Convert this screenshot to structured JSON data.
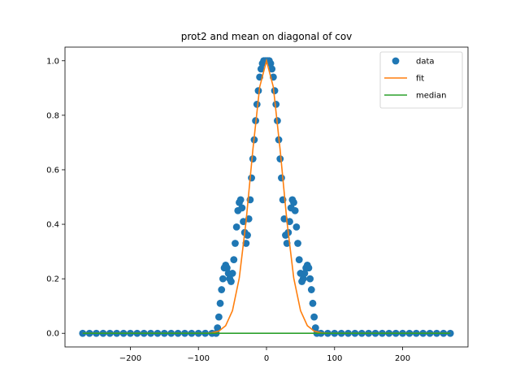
{
  "chart_data": {
    "type": "scatter",
    "title": "prot2 and mean on diagonal of cov",
    "xlabel": "",
    "ylabel": "",
    "xlim": [
      -296,
      296
    ],
    "ylim": [
      -0.05,
      1.05
    ],
    "xticks": [
      -200,
      -100,
      0,
      100,
      200
    ],
    "xtick_labels": [
      "−200",
      "−100",
      "0",
      "100",
      "200"
    ],
    "yticks": [
      0.0,
      0.2,
      0.4,
      0.6,
      0.8,
      1.0
    ],
    "ytick_labels": [
      "0.0",
      "0.2",
      "0.4",
      "0.6",
      "0.8",
      "1.0"
    ],
    "grid": false,
    "legend_position": "top-right",
    "series": [
      {
        "name": "data",
        "kind": "scatter",
        "color": "#1f77b4",
        "x": [
          -270,
          -260,
          -250,
          -240,
          -230,
          -220,
          -210,
          -200,
          -190,
          -180,
          -170,
          -160,
          -150,
          -140,
          -130,
          -120,
          -110,
          -100,
          -90,
          -80,
          -74,
          -72,
          -70,
          -68,
          -66,
          -64,
          -62,
          -60,
          -58,
          -56,
          -54,
          -52,
          -50,
          -48,
          -46,
          -44,
          -42,
          -40,
          -38,
          -36,
          -34,
          -32,
          -30,
          -28,
          -26,
          -24,
          -22,
          -20,
          -18,
          -16,
          -14,
          -12,
          -10,
          -8,
          -6,
          -4,
          -2,
          0,
          2,
          4,
          6,
          8,
          10,
          12,
          14,
          16,
          18,
          20,
          22,
          24,
          26,
          28,
          30,
          32,
          34,
          36,
          38,
          40,
          42,
          44,
          46,
          48,
          50,
          52,
          54,
          56,
          58,
          60,
          62,
          64,
          66,
          68,
          70,
          72,
          74,
          80,
          90,
          100,
          110,
          120,
          130,
          140,
          150,
          160,
          170,
          180,
          190,
          200,
          210,
          220,
          230,
          240,
          250,
          260,
          270
        ],
        "y": [
          0,
          0,
          0,
          0,
          0,
          0,
          0,
          0,
          0,
          0,
          0,
          0,
          0,
          0,
          0,
          0,
          0,
          0,
          0,
          0,
          0.0,
          0.02,
          0.06,
          0.11,
          0.16,
          0.2,
          0.24,
          0.25,
          0.24,
          0.22,
          0.2,
          0.19,
          0.22,
          0.27,
          0.33,
          0.39,
          0.45,
          0.48,
          0.49,
          0.46,
          0.41,
          0.37,
          0.33,
          0.36,
          0.42,
          0.49,
          0.57,
          0.64,
          0.71,
          0.78,
          0.84,
          0.89,
          0.94,
          0.97,
          0.99,
          1.0,
          1.0,
          1.0,
          1.0,
          1.0,
          0.99,
          0.97,
          0.94,
          0.89,
          0.84,
          0.78,
          0.71,
          0.64,
          0.57,
          0.49,
          0.42,
          0.36,
          0.33,
          0.37,
          0.41,
          0.46,
          0.49,
          0.48,
          0.45,
          0.39,
          0.33,
          0.27,
          0.22,
          0.19,
          0.2,
          0.22,
          0.24,
          0.25,
          0.24,
          0.2,
          0.16,
          0.11,
          0.06,
          0.02,
          0.0,
          0,
          0,
          0,
          0,
          0,
          0,
          0,
          0,
          0,
          0,
          0,
          0,
          0,
          0,
          0,
          0,
          0,
          0,
          0,
          0
        ]
      },
      {
        "name": "fit",
        "kind": "line",
        "color": "#ff7f0e",
        "x": [
          -270,
          -200,
          -120,
          -90,
          -80,
          -70,
          -60,
          -50,
          -40,
          -30,
          -20,
          -10,
          0,
          10,
          20,
          30,
          40,
          50,
          60,
          70,
          80,
          90,
          120,
          200,
          270
        ],
        "y": [
          0,
          0,
          0,
          0,
          0.002,
          0.008,
          0.028,
          0.083,
          0.203,
          0.411,
          0.674,
          0.904,
          1.0,
          0.904,
          0.674,
          0.411,
          0.203,
          0.083,
          0.028,
          0.008,
          0.002,
          0,
          0,
          0,
          0
        ]
      },
      {
        "name": "median",
        "kind": "line",
        "color": "#2ca02c",
        "x": [
          -270,
          270
        ],
        "y": [
          0,
          0
        ]
      }
    ]
  }
}
